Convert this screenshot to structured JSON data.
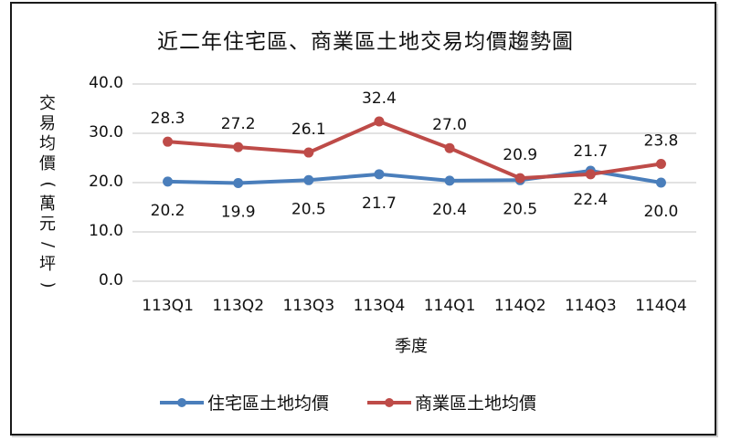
{
  "chart_data": {
    "type": "line",
    "title": "近二年住宅區、商業區土地交易均價趨勢圖",
    "xlabel": "季度",
    "ylabel": "交易均價(萬元/坪)",
    "ylim": [
      0,
      40
    ],
    "yticks": [
      "40.0",
      "30.0",
      "20.0",
      "10.0",
      "0.0"
    ],
    "grid": true,
    "legend_position": "bottom",
    "categories": [
      "113Q1",
      "113Q2",
      "113Q3",
      "113Q4",
      "114Q1",
      "114Q2",
      "114Q3",
      "114Q4"
    ],
    "series": [
      {
        "name": "住宅區土地均價",
        "color": "#4a7ebb",
        "values": [
          20.2,
          19.9,
          20.5,
          21.7,
          20.4,
          20.5,
          22.4,
          20.0
        ],
        "label_position": "below"
      },
      {
        "name": "商業區土地均價",
        "color": "#be4b48",
        "values": [
          28.3,
          27.2,
          26.1,
          32.4,
          27.0,
          20.9,
          21.7,
          23.8
        ],
        "label_position": "above"
      }
    ]
  },
  "labels": {
    "title": "近二年住宅區、商業區土地交易均價趨勢圖",
    "xlabel": "季度",
    "ylabel_chars": [
      "交",
      "易",
      "均",
      "價",
      "(",
      "萬",
      "元",
      "/",
      "坪",
      ")"
    ],
    "legend": [
      "住宅區土地均價",
      "商業區土地均價"
    ]
  }
}
